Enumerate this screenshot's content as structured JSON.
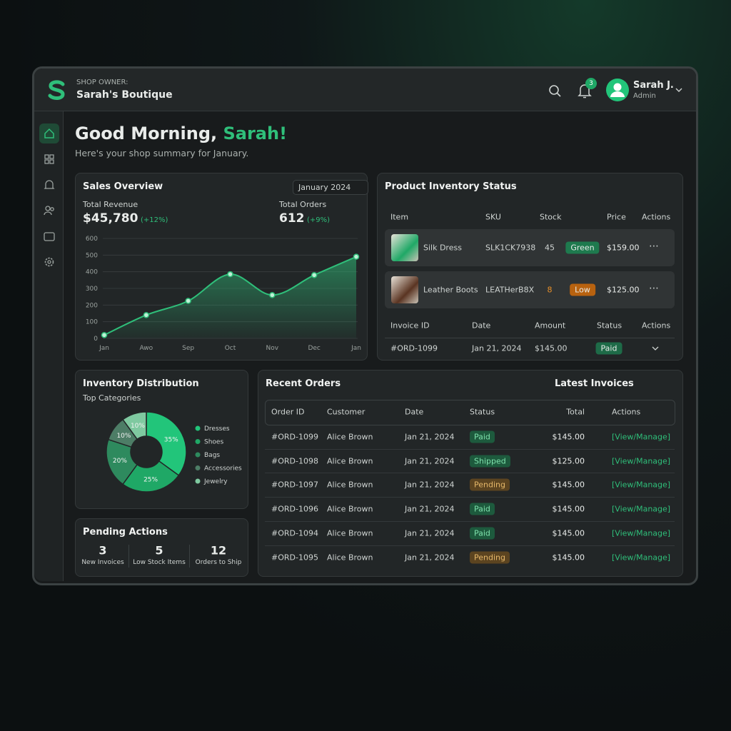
{
  "header": {
    "label": "SHOP OWNER:",
    "shop_name": "Sarah's Boutique",
    "notification_count": 3,
    "user_name": "Sarah J.",
    "user_role": "Admin"
  },
  "greeting": {
    "text": "Good Morning,",
    "name": "Sarah!",
    "subtitle": "Here's your shop summary for January."
  },
  "sales_overview": {
    "title": "Sales Overview",
    "period": "January 2024",
    "revenue_label": "Total Revenue",
    "revenue": "$45,780",
    "revenue_change": "(+12%)",
    "orders_label": "Total Orders",
    "orders": 612,
    "orders_change": "(+9%)",
    "chart": {
      "type": "line",
      "categories": [
        "Jan",
        "Awo",
        "Sep",
        "Oct",
        "Nov",
        "Dec",
        "Jan"
      ],
      "values": [
        20,
        140,
        225,
        385,
        260,
        380,
        490
      ],
      "color": "#2fbf7a",
      "ylim": [
        0,
        600
      ],
      "yticks": [
        0,
        100,
        200,
        300,
        400,
        500,
        600
      ],
      "grid": true
    }
  },
  "inventory": {
    "title": "Product Inventory Status",
    "columns": [
      "Item",
      "SKU",
      "Stock",
      "Price",
      "Actions"
    ],
    "rows": [
      {
        "item": "Silk Dress",
        "sku": "SLK1CK7938",
        "stock": 45,
        "stock_color": "#cfd4d2",
        "status": "Green",
        "status_color": "#1e7a4e",
        "price": "$159.00"
      },
      {
        "item": "Leather Boots",
        "sku": "LEATHerB8X",
        "stock": 8,
        "stock_color": "#e8902a",
        "status": "Low",
        "status_color": "#b8620f",
        "price": "$125.00"
      }
    ],
    "invoice_columns": [
      "Invoice ID",
      "Date",
      "Amount",
      "Status",
      "Actions"
    ],
    "invoices": [
      {
        "id": "#ORD-1099",
        "date": "Jan 21, 2024",
        "amount": "$145.00",
        "status": "Paid",
        "status_color": "#1e6b48"
      }
    ]
  },
  "inventory_distribution": {
    "title": "Inventory Distribution",
    "subtitle": "Top Categories",
    "chart": {
      "type": "pie",
      "categories": [
        "Dresses",
        "Shoes",
        "Bags",
        "Accessories",
        "Jewelry"
      ],
      "values": [
        35,
        25,
        20,
        10,
        10
      ],
      "value_labels": [
        "35%",
        "25%",
        "20%",
        "10%",
        "10%"
      ],
      "colors": [
        "#22c57a",
        "#1fa866",
        "#2e8a5e",
        "#4d7d66",
        "#7fc9a0"
      ]
    }
  },
  "pending_actions": {
    "title": "Pending Actions",
    "items": [
      {
        "value": 3,
        "label": "New Invoices"
      },
      {
        "value": 5,
        "label": "Low Stock Items"
      },
      {
        "value": 12,
        "label": "Orders to Ship"
      }
    ]
  },
  "recent_orders": {
    "title": "Recent Orders",
    "tab": "Latest Invoices",
    "columns": [
      "Order ID",
      "Customer",
      "Date",
      "Status",
      "Total",
      "Actions"
    ],
    "rows": [
      {
        "id": "#ORD-1099",
        "customer": "Alice Brown",
        "date": "Jan 21, 2024",
        "status": "Paid",
        "status_color": "#1d5a3d",
        "status_text_color": "#7fe3ad",
        "total": "$145.00",
        "action": "[View/Manage]"
      },
      {
        "id": "#ORD-1098",
        "customer": "Alice Brown",
        "date": "Jan 21, 2024",
        "status": "Shipped",
        "status_color": "#1d5a3d",
        "status_text_color": "#7fe3ad",
        "total": "$125.00",
        "action": "[View/Manage]"
      },
      {
        "id": "#ORD-1097",
        "customer": "Alice Brown",
        "date": "Jan 21, 2024",
        "status": "Pending",
        "status_color": "#5c4420",
        "status_text_color": "#e6b86a",
        "total": "$145.00",
        "action": "[View/Manage]"
      },
      {
        "id": "#ORD-1096",
        "customer": "Alice Brown",
        "date": "Jan 21, 2024",
        "status": "Paid",
        "status_color": "#1d5a3d",
        "status_text_color": "#7fe3ad",
        "total": "$145.00",
        "action": "[View/Manage]"
      },
      {
        "id": "#ORD-1094",
        "customer": "Alice Brown",
        "date": "Jan 21, 2024",
        "status": "Paid",
        "status_color": "#1d5a3d",
        "status_text_color": "#7fe3ad",
        "total": "$145.00",
        "action": "[View/Manage]"
      },
      {
        "id": "#ORD-1095",
        "customer": "Alice Brown",
        "date": "Jan 21, 2024",
        "status": "Pending",
        "status_color": "#5c4420",
        "status_text_color": "#e6b86a",
        "total": "$145.00",
        "action": "[View/Manage]"
      }
    ]
  }
}
